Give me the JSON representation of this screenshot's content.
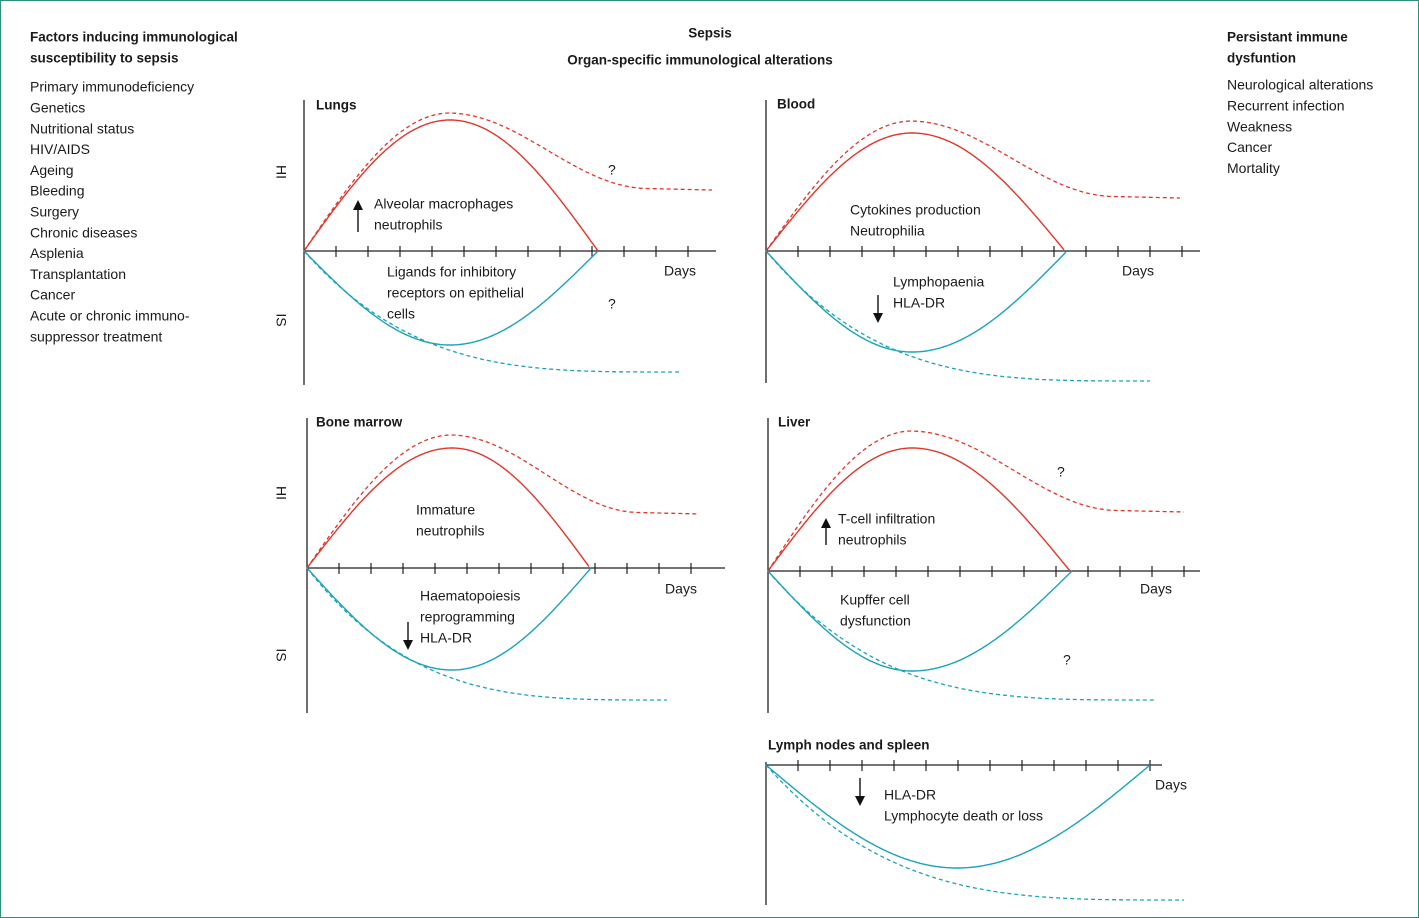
{
  "left": {
    "title": [
      "Factors inducing immunological",
      "susceptibility to sepsis"
    ],
    "items": [
      "Primary immunodeficiency",
      "Genetics",
      "Nutritional status",
      "HIV/AIDS",
      "Ageing",
      "Bleeding",
      "Surgery",
      "Chronic diseases",
      "Asplenia",
      "Transplantation",
      "Cancer",
      "Acute or chronic immuno-",
      "suppressor treatment"
    ]
  },
  "center": {
    "title": "Sepsis",
    "subtitle": "Organ-specific immunological alterations"
  },
  "right": {
    "title": [
      "Persistant immune",
      "dysfuntion"
    ],
    "items": [
      "Neurological alterations",
      "Recurrent infection",
      "Weakness",
      "Cancer",
      "Mortality"
    ]
  },
  "axis_labels": {
    "hi": "HI",
    "is": "IS"
  },
  "panels": [
    {
      "title": "Lungs",
      "x_label": "Days",
      "annotations": [
        [
          "Alveolar macrophages",
          "neutrophils"
        ],
        [
          "Ligands for inhibitory",
          "receptors on epithelial",
          "cells"
        ],
        [
          "?"
        ],
        [
          "?"
        ]
      ]
    },
    {
      "title": "Blood",
      "x_label": "Days",
      "annotations": [
        [
          "Cytokines production",
          "Neutrophilia"
        ],
        [
          "Lymphopaenia",
          "HLA-DR"
        ]
      ]
    },
    {
      "title": "Bone marrow",
      "x_label": "Days",
      "annotations": [
        [
          "Immature",
          "neutrophils"
        ],
        [
          "Haematopoiesis",
          "reprogramming",
          "HLA-DR"
        ]
      ]
    },
    {
      "title": "Liver",
      "x_label": "Days",
      "annotations": [
        [
          "T-cell infiltration",
          "neutrophils"
        ],
        [
          "Kupffer cell",
          "dysfunction"
        ],
        [
          "?"
        ],
        [
          "?"
        ]
      ]
    },
    {
      "title": "Lymph nodes and spleen",
      "x_label": "Days",
      "annotations": [
        [
          "HLA-DR",
          "Lymphocyte death or loss"
        ]
      ]
    }
  ]
}
